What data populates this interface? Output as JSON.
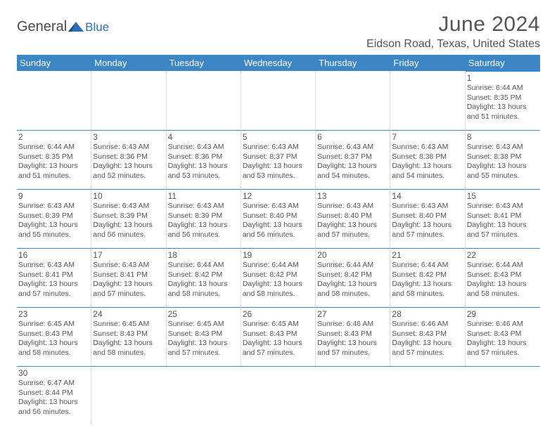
{
  "logo": {
    "text1": "General",
    "text2": "Blue"
  },
  "title": "June 2024",
  "location": "Eidson Road, Texas, United States",
  "weekdays": [
    "Sunday",
    "Monday",
    "Tuesday",
    "Wednesday",
    "Thursday",
    "Friday",
    "Saturday"
  ],
  "colors": {
    "header_bg": "#3d86c6",
    "header_text": "#ffffff",
    "body_text": "#555555",
    "title_text": "#545454"
  },
  "startOffset": 6,
  "days": [
    {
      "n": 1,
      "sunrise": "6:44 AM",
      "sunset": "8:35 PM",
      "dl1": "13 hours",
      "dl2": "51 minutes"
    },
    {
      "n": 2,
      "sunrise": "6:44 AM",
      "sunset": "8:35 PM",
      "dl1": "13 hours",
      "dl2": "51 minutes"
    },
    {
      "n": 3,
      "sunrise": "6:43 AM",
      "sunset": "8:36 PM",
      "dl1": "13 hours",
      "dl2": "52 minutes"
    },
    {
      "n": 4,
      "sunrise": "6:43 AM",
      "sunset": "8:36 PM",
      "dl1": "13 hours",
      "dl2": "53 minutes"
    },
    {
      "n": 5,
      "sunrise": "6:43 AM",
      "sunset": "8:37 PM",
      "dl1": "13 hours",
      "dl2": "53 minutes"
    },
    {
      "n": 6,
      "sunrise": "6:43 AM",
      "sunset": "8:37 PM",
      "dl1": "13 hours",
      "dl2": "54 minutes"
    },
    {
      "n": 7,
      "sunrise": "6:43 AM",
      "sunset": "8:38 PM",
      "dl1": "13 hours",
      "dl2": "54 minutes"
    },
    {
      "n": 8,
      "sunrise": "6:43 AM",
      "sunset": "8:38 PM",
      "dl1": "13 hours",
      "dl2": "55 minutes"
    },
    {
      "n": 9,
      "sunrise": "6:43 AM",
      "sunset": "8:39 PM",
      "dl1": "13 hours",
      "dl2": "55 minutes"
    },
    {
      "n": 10,
      "sunrise": "6:43 AM",
      "sunset": "8:39 PM",
      "dl1": "13 hours",
      "dl2": "56 minutes"
    },
    {
      "n": 11,
      "sunrise": "6:43 AM",
      "sunset": "8:39 PM",
      "dl1": "13 hours",
      "dl2": "56 minutes"
    },
    {
      "n": 12,
      "sunrise": "6:43 AM",
      "sunset": "8:40 PM",
      "dl1": "13 hours",
      "dl2": "56 minutes"
    },
    {
      "n": 13,
      "sunrise": "6:43 AM",
      "sunset": "8:40 PM",
      "dl1": "13 hours",
      "dl2": "57 minutes"
    },
    {
      "n": 14,
      "sunrise": "6:43 AM",
      "sunset": "8:40 PM",
      "dl1": "13 hours",
      "dl2": "57 minutes"
    },
    {
      "n": 15,
      "sunrise": "6:43 AM",
      "sunset": "8:41 PM",
      "dl1": "13 hours",
      "dl2": "57 minutes"
    },
    {
      "n": 16,
      "sunrise": "6:43 AM",
      "sunset": "8:41 PM",
      "dl1": "13 hours",
      "dl2": "57 minutes"
    },
    {
      "n": 17,
      "sunrise": "6:43 AM",
      "sunset": "8:41 PM",
      "dl1": "13 hours",
      "dl2": "57 minutes"
    },
    {
      "n": 18,
      "sunrise": "6:44 AM",
      "sunset": "8:42 PM",
      "dl1": "13 hours",
      "dl2": "58 minutes"
    },
    {
      "n": 19,
      "sunrise": "6:44 AM",
      "sunset": "8:42 PM",
      "dl1": "13 hours",
      "dl2": "58 minutes"
    },
    {
      "n": 20,
      "sunrise": "6:44 AM",
      "sunset": "8:42 PM",
      "dl1": "13 hours",
      "dl2": "58 minutes"
    },
    {
      "n": 21,
      "sunrise": "6:44 AM",
      "sunset": "8:42 PM",
      "dl1": "13 hours",
      "dl2": "58 minutes"
    },
    {
      "n": 22,
      "sunrise": "6:44 AM",
      "sunset": "8:43 PM",
      "dl1": "13 hours",
      "dl2": "58 minutes"
    },
    {
      "n": 23,
      "sunrise": "6:45 AM",
      "sunset": "8:43 PM",
      "dl1": "13 hours",
      "dl2": "58 minutes"
    },
    {
      "n": 24,
      "sunrise": "6:45 AM",
      "sunset": "8:43 PM",
      "dl1": "13 hours",
      "dl2": "58 minutes"
    },
    {
      "n": 25,
      "sunrise": "6:45 AM",
      "sunset": "8:43 PM",
      "dl1": "13 hours",
      "dl2": "57 minutes"
    },
    {
      "n": 26,
      "sunrise": "6:45 AM",
      "sunset": "8:43 PM",
      "dl1": "13 hours",
      "dl2": "57 minutes"
    },
    {
      "n": 27,
      "sunrise": "6:46 AM",
      "sunset": "8:43 PM",
      "dl1": "13 hours",
      "dl2": "57 minutes"
    },
    {
      "n": 28,
      "sunrise": "6:46 AM",
      "sunset": "8:43 PM",
      "dl1": "13 hours",
      "dl2": "57 minutes"
    },
    {
      "n": 29,
      "sunrise": "6:46 AM",
      "sunset": "8:43 PM",
      "dl1": "13 hours",
      "dl2": "57 minutes"
    },
    {
      "n": 30,
      "sunrise": "6:47 AM",
      "sunset": "8:44 PM",
      "dl1": "13 hours",
      "dl2": "56 minutes"
    }
  ]
}
